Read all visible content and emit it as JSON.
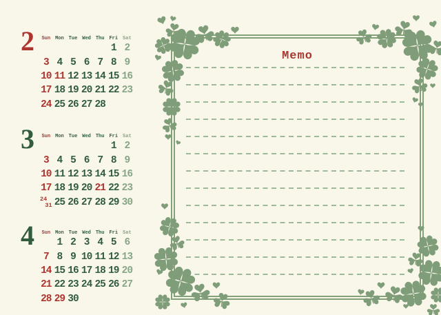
{
  "colors": {
    "background": "#f9f6ea",
    "holiday_red": "#ac3530",
    "weekday_green": "#315c3e",
    "saturday_green": "#88a687",
    "frame_green": "#82a178",
    "dash_green": "#9cba9a",
    "clover_green": "#7e9d78"
  },
  "weekday_headers": [
    {
      "label": "Sun",
      "color": "holiday"
    },
    {
      "label": "Mon",
      "color": "weekday"
    },
    {
      "label": "Tue",
      "color": "weekday"
    },
    {
      "label": "Wed",
      "color": "weekday"
    },
    {
      "label": "Thu",
      "color": "weekday"
    },
    {
      "label": "Fri",
      "color": "weekday"
    },
    {
      "label": "Sat",
      "color": "saturday"
    }
  ],
  "months": [
    {
      "number": "2",
      "number_color": "holiday",
      "weeks": [
        [
          null,
          null,
          null,
          null,
          null,
          {
            "d": "1",
            "c": "weekday"
          },
          {
            "d": "2",
            "c": "saturday"
          }
        ],
        [
          {
            "d": "3",
            "c": "holiday"
          },
          {
            "d": "4",
            "c": "weekday"
          },
          {
            "d": "5",
            "c": "weekday"
          },
          {
            "d": "6",
            "c": "weekday"
          },
          {
            "d": "7",
            "c": "weekday"
          },
          {
            "d": "8",
            "c": "weekday"
          },
          {
            "d": "9",
            "c": "saturday"
          }
        ],
        [
          {
            "d": "10",
            "c": "holiday"
          },
          {
            "d": "11",
            "c": "holiday"
          },
          {
            "d": "12",
            "c": "weekday"
          },
          {
            "d": "13",
            "c": "weekday"
          },
          {
            "d": "14",
            "c": "weekday"
          },
          {
            "d": "15",
            "c": "weekday"
          },
          {
            "d": "16",
            "c": "saturday"
          }
        ],
        [
          {
            "d": "17",
            "c": "holiday"
          },
          {
            "d": "18",
            "c": "weekday"
          },
          {
            "d": "19",
            "c": "weekday"
          },
          {
            "d": "20",
            "c": "weekday"
          },
          {
            "d": "21",
            "c": "weekday"
          },
          {
            "d": "22",
            "c": "weekday"
          },
          {
            "d": "23",
            "c": "saturday"
          }
        ],
        [
          {
            "d": "24",
            "c": "holiday"
          },
          {
            "d": "25",
            "c": "weekday"
          },
          {
            "d": "26",
            "c": "weekday"
          },
          {
            "d": "27",
            "c": "weekday"
          },
          {
            "d": "28",
            "c": "weekday"
          },
          null,
          null
        ]
      ]
    },
    {
      "number": "3",
      "number_color": "weekday",
      "weeks": [
        [
          null,
          null,
          null,
          null,
          null,
          {
            "d": "1",
            "c": "weekday"
          },
          {
            "d": "2",
            "c": "saturday"
          }
        ],
        [
          {
            "d": "3",
            "c": "holiday"
          },
          {
            "d": "4",
            "c": "weekday"
          },
          {
            "d": "5",
            "c": "weekday"
          },
          {
            "d": "6",
            "c": "weekday"
          },
          {
            "d": "7",
            "c": "weekday"
          },
          {
            "d": "8",
            "c": "weekday"
          },
          {
            "d": "9",
            "c": "saturday"
          }
        ],
        [
          {
            "d": "10",
            "c": "holiday"
          },
          {
            "d": "11",
            "c": "weekday"
          },
          {
            "d": "12",
            "c": "weekday"
          },
          {
            "d": "13",
            "c": "weekday"
          },
          {
            "d": "14",
            "c": "weekday"
          },
          {
            "d": "15",
            "c": "weekday"
          },
          {
            "d": "16",
            "c": "saturday"
          }
        ],
        [
          {
            "d": "17",
            "c": "holiday"
          },
          {
            "d": "18",
            "c": "weekday"
          },
          {
            "d": "19",
            "c": "weekday"
          },
          {
            "d": "20",
            "c": "weekday"
          },
          {
            "d": "21",
            "c": "holiday"
          },
          {
            "d": "22",
            "c": "weekday"
          },
          {
            "d": "23",
            "c": "saturday"
          }
        ],
        [
          {
            "d": "24",
            "d2": "31",
            "c": "holiday"
          },
          {
            "d": "25",
            "c": "weekday"
          },
          {
            "d": "26",
            "c": "weekday"
          },
          {
            "d": "27",
            "c": "weekday"
          },
          {
            "d": "28",
            "c": "weekday"
          },
          {
            "d": "29",
            "c": "weekday"
          },
          {
            "d": "30",
            "c": "saturday"
          }
        ]
      ]
    },
    {
      "number": "4",
      "number_color": "weekday",
      "weeks": [
        [
          null,
          {
            "d": "1",
            "c": "weekday"
          },
          {
            "d": "2",
            "c": "weekday"
          },
          {
            "d": "3",
            "c": "weekday"
          },
          {
            "d": "4",
            "c": "weekday"
          },
          {
            "d": "5",
            "c": "weekday"
          },
          {
            "d": "6",
            "c": "saturday"
          }
        ],
        [
          {
            "d": "7",
            "c": "holiday"
          },
          {
            "d": "8",
            "c": "weekday"
          },
          {
            "d": "9",
            "c": "weekday"
          },
          {
            "d": "10",
            "c": "weekday"
          },
          {
            "d": "11",
            "c": "weekday"
          },
          {
            "d": "12",
            "c": "weekday"
          },
          {
            "d": "13",
            "c": "saturday"
          }
        ],
        [
          {
            "d": "14",
            "c": "holiday"
          },
          {
            "d": "15",
            "c": "weekday"
          },
          {
            "d": "16",
            "c": "weekday"
          },
          {
            "d": "17",
            "c": "weekday"
          },
          {
            "d": "18",
            "c": "weekday"
          },
          {
            "d": "19",
            "c": "weekday"
          },
          {
            "d": "20",
            "c": "saturday"
          }
        ],
        [
          {
            "d": "21",
            "c": "holiday"
          },
          {
            "d": "22",
            "c": "weekday"
          },
          {
            "d": "23",
            "c": "weekday"
          },
          {
            "d": "24",
            "c": "weekday"
          },
          {
            "d": "25",
            "c": "weekday"
          },
          {
            "d": "26",
            "c": "weekday"
          },
          {
            "d": "27",
            "c": "saturday"
          }
        ],
        [
          {
            "d": "28",
            "c": "holiday"
          },
          {
            "d": "29",
            "c": "holiday"
          },
          {
            "d": "30",
            "c": "weekday"
          },
          null,
          null,
          null,
          null
        ]
      ]
    }
  ],
  "memo": {
    "title": "Memo",
    "line_count": 13
  },
  "decoration_motifs": [
    "four-leaf-clover-icon",
    "three-leaf-clover-icon",
    "heart-icon"
  ]
}
